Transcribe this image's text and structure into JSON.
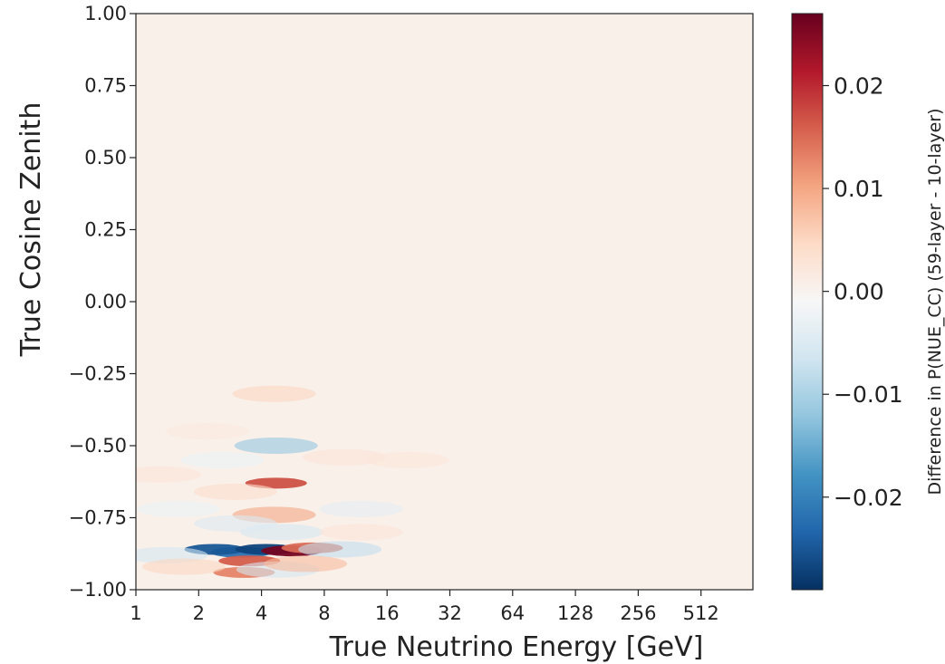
{
  "chart_data": {
    "type": "heatmap",
    "title": "",
    "xlabel": "True  Neutrino Energy [GeV]",
    "ylabel": "True  Cosine Zenith",
    "x_scale": "log2",
    "xlim": [
      1,
      1000
    ],
    "ylim": [
      -1.0,
      1.0
    ],
    "x_ticks": [
      1,
      2,
      4,
      8,
      16,
      32,
      64,
      128,
      256,
      512
    ],
    "x_tick_labels": [
      "1",
      "2",
      "4",
      "8",
      "16",
      "32",
      "64",
      "128",
      "256",
      "512"
    ],
    "y_ticks": [
      1.0,
      0.75,
      0.5,
      0.25,
      0.0,
      -0.25,
      -0.5,
      -0.75,
      -1.0
    ],
    "y_tick_labels": [
      "1.00",
      "0.75",
      "0.50",
      "0.25",
      "0.00",
      "−0.25",
      "−0.50",
      "−0.75",
      "−1.00"
    ],
    "grid": false,
    "colormap": "RdBu_r",
    "colorbar": {
      "label": "Difference in P(NUE_CC) (59-layer - 10-layer)",
      "range": [
        -0.029,
        0.027
      ],
      "ticks": [
        0.02,
        0.01,
        0.0,
        -0.01,
        -0.02
      ],
      "tick_labels": [
        "0.02",
        "0.01",
        "0.00",
        "−0.01",
        "−0.02"
      ]
    },
    "background_value": 0.0005,
    "features": [
      {
        "energy_gev": 3.2,
        "cos_zenith": -0.87,
        "value": -0.022
      },
      {
        "energy_gev": 2.4,
        "cos_zenith": -0.86,
        "value": -0.025
      },
      {
        "energy_gev": 4.2,
        "cos_zenith": -0.86,
        "value": -0.027
      },
      {
        "energy_gev": 5.6,
        "cos_zenith": -0.865,
        "value": 0.026
      },
      {
        "energy_gev": 7.0,
        "cos_zenith": -0.855,
        "value": 0.015
      },
      {
        "energy_gev": 9.5,
        "cos_zenith": -0.86,
        "value": -0.008
      },
      {
        "energy_gev": 3.5,
        "cos_zenith": -0.9,
        "value": 0.016
      },
      {
        "energy_gev": 3.3,
        "cos_zenith": -0.94,
        "value": 0.013
      },
      {
        "energy_gev": 4.8,
        "cos_zenith": -0.93,
        "value": -0.006
      },
      {
        "energy_gev": 6.5,
        "cos_zenith": -0.91,
        "value": 0.008
      },
      {
        "energy_gev": 4.7,
        "cos_zenith": -0.63,
        "value": 0.017
      },
      {
        "energy_gev": 4.7,
        "cos_zenith": -0.5,
        "value": -0.012
      },
      {
        "energy_gev": 4.6,
        "cos_zenith": -0.32,
        "value": 0.005
      },
      {
        "energy_gev": 4.6,
        "cos_zenith": -0.74,
        "value": 0.01
      },
      {
        "energy_gev": 5.0,
        "cos_zenith": -0.8,
        "value": -0.006
      },
      {
        "energy_gev": 3.0,
        "cos_zenith": -0.77,
        "value": -0.005
      },
      {
        "energy_gev": 3.0,
        "cos_zenith": -0.66,
        "value": 0.004
      },
      {
        "energy_gev": 10.0,
        "cos_zenith": -0.54,
        "value": 0.003
      },
      {
        "energy_gev": 20.0,
        "cos_zenith": -0.55,
        "value": 0.0025
      },
      {
        "energy_gev": 12.0,
        "cos_zenith": -0.72,
        "value": -0.004
      },
      {
        "energy_gev": 12.0,
        "cos_zenith": -0.8,
        "value": 0.003
      },
      {
        "energy_gev": 1.4,
        "cos_zenith": -0.88,
        "value": -0.006
      },
      {
        "energy_gev": 1.7,
        "cos_zenith": -0.92,
        "value": 0.005
      },
      {
        "energy_gev": 1.3,
        "cos_zenith": -0.6,
        "value": 0.003
      },
      {
        "energy_gev": 1.6,
        "cos_zenith": -0.72,
        "value": -0.003
      },
      {
        "energy_gev": 2.2,
        "cos_zenith": -0.45,
        "value": 0.002
      },
      {
        "energy_gev": 2.6,
        "cos_zenith": -0.55,
        "value": -0.003
      }
    ]
  }
}
